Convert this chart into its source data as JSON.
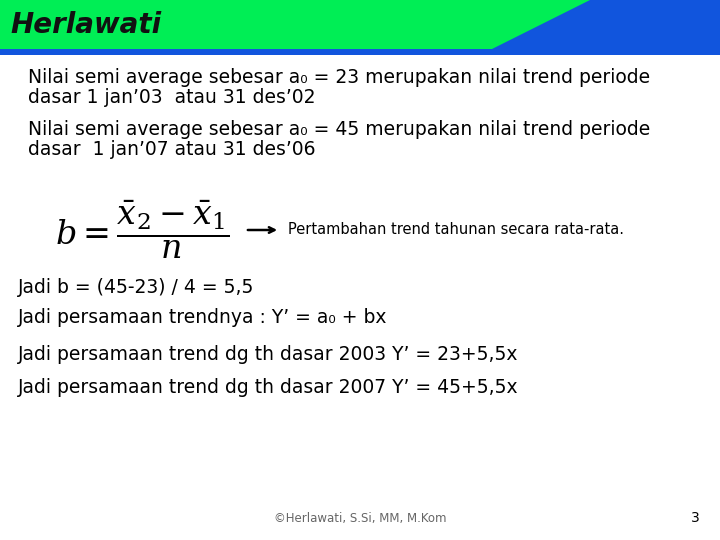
{
  "background_color": "#ffffff",
  "header_text": "Herlawati",
  "header_green": "#00ee55",
  "header_blue": "#1155dd",
  "line1": "Nilai semi average sebesar a₀ = 23 merupakan nilai trend periode",
  "line2": "dasar 1 jan’03  atau 31 des’02",
  "line3": "Nilai semi average sebesar a₀ = 45 merupakan nilai trend periode",
  "line4": "dasar  1 jan’07 atau 31 des’06",
  "formula_annotation": "Pertambahan trend tahunan secara rata-rata.",
  "jadi1": "Jadi b = (45-23) / 4 = 5,5",
  "jadi2": "Jadi persamaan trendnya : Y’ = a₀ + bx",
  "jadi3": "Jadi persamaan trend dg th dasar 2003 Y’ = 23+5,5x",
  "jadi4": "Jadi persamaan trend dg th dasar 2007 Y’ = 45+5,5x",
  "footer": "©Herlawati, S.Si, MM, M.Kom",
  "page_number": "3",
  "text_color": "#000000",
  "body_font_size": 13.5,
  "header_font_size": 20
}
